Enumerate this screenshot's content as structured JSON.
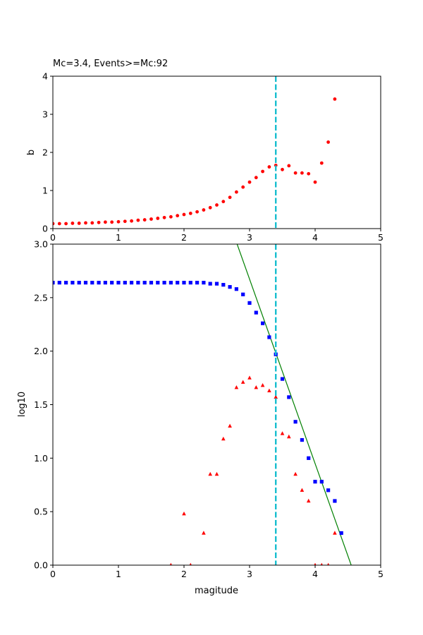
{
  "chart_data": [
    {
      "type": "scatter",
      "title": "Mc=3.4, Events>=Mc:92",
      "xlabel": "",
      "ylabel": "b",
      "xlim": [
        0,
        5
      ],
      "ylim": [
        0,
        4
      ],
      "xticks": [
        "0",
        "1",
        "2",
        "3",
        "4",
        "5"
      ],
      "yticks": [
        "0",
        "1",
        "2",
        "3",
        "4"
      ],
      "grid": false,
      "vline": {
        "x": 3.4,
        "color": "#17becf",
        "style": "dashed"
      },
      "series": [
        {
          "marker": "circle",
          "color": "#ff0000",
          "x": [
            0.0,
            0.1,
            0.2,
            0.3,
            0.4,
            0.5,
            0.6,
            0.7,
            0.8,
            0.9,
            1.0,
            1.1,
            1.2,
            1.3,
            1.4,
            1.5,
            1.6,
            1.7,
            1.8,
            1.9,
            2.0,
            2.1,
            2.2,
            2.3,
            2.4,
            2.5,
            2.6,
            2.7,
            2.8,
            2.9,
            3.0,
            3.1,
            3.2,
            3.3,
            3.4,
            3.5,
            3.6,
            3.7,
            3.8,
            3.9,
            4.0,
            4.1,
            4.2,
            4.3
          ],
          "y": [
            0.13,
            0.13,
            0.13,
            0.14,
            0.14,
            0.15,
            0.15,
            0.16,
            0.17,
            0.17,
            0.18,
            0.19,
            0.2,
            0.22,
            0.23,
            0.25,
            0.27,
            0.29,
            0.31,
            0.34,
            0.37,
            0.4,
            0.44,
            0.49,
            0.55,
            0.62,
            0.71,
            0.82,
            0.96,
            1.09,
            1.22,
            1.34,
            1.5,
            1.62,
            1.66,
            1.55,
            1.65,
            1.46,
            1.46,
            1.44,
            1.22,
            1.72,
            2.27,
            3.4
          ]
        }
      ]
    },
    {
      "type": "scatter",
      "title": "",
      "xlabel": "magitude",
      "ylabel": "log10",
      "xlim": [
        0,
        5
      ],
      "ylim": [
        0,
        3
      ],
      "xticks": [
        "0",
        "1",
        "2",
        "3",
        "4",
        "5"
      ],
      "yticks": [
        "0.0",
        "0.5",
        "1.0",
        "1.5",
        "2.0",
        "2.5",
        "3.0"
      ],
      "grid": false,
      "vline": {
        "x": 3.4,
        "color": "#17becf",
        "style": "dashed"
      },
      "fit_line": {
        "color": "#008000",
        "x": [
          2.81,
          4.55
        ],
        "y": [
          3.0,
          0.0
        ]
      },
      "series": [
        {
          "marker": "square",
          "color": "#0000ff",
          "x": [
            0.0,
            0.1,
            0.2,
            0.3,
            0.4,
            0.5,
            0.6,
            0.7,
            0.8,
            0.9,
            1.0,
            1.1,
            1.2,
            1.3,
            1.4,
            1.5,
            1.6,
            1.7,
            1.8,
            1.9,
            2.0,
            2.1,
            2.2,
            2.3,
            2.4,
            2.5,
            2.6,
            2.7,
            2.8,
            2.9,
            3.0,
            3.1,
            3.2,
            3.3,
            3.4,
            3.5,
            3.6,
            3.7,
            3.8,
            3.9,
            4.0,
            4.1,
            4.2,
            4.3,
            4.4
          ],
          "y": [
            2.64,
            2.64,
            2.64,
            2.64,
            2.64,
            2.64,
            2.64,
            2.64,
            2.64,
            2.64,
            2.64,
            2.64,
            2.64,
            2.64,
            2.64,
            2.64,
            2.64,
            2.64,
            2.64,
            2.64,
            2.64,
            2.64,
            2.64,
            2.64,
            2.63,
            2.63,
            2.62,
            2.6,
            2.58,
            2.53,
            2.45,
            2.36,
            2.26,
            2.13,
            1.97,
            1.74,
            1.57,
            1.34,
            1.17,
            1.0,
            0.78,
            0.78,
            0.7,
            0.6,
            0.3
          ]
        },
        {
          "marker": "triangle",
          "color": "#ff0000",
          "x": [
            1.8,
            2.0,
            2.1,
            2.3,
            2.4,
            2.5,
            2.6,
            2.7,
            2.8,
            2.9,
            3.0,
            3.1,
            3.2,
            3.3,
            3.4,
            3.5,
            3.6,
            3.7,
            3.8,
            3.9,
            4.0,
            4.1,
            4.2,
            4.3
          ],
          "y": [
            0.0,
            0.48,
            0.0,
            0.3,
            0.85,
            0.85,
            1.18,
            1.3,
            1.66,
            1.71,
            1.75,
            1.66,
            1.68,
            1.63,
            1.57,
            1.23,
            1.2,
            0.85,
            0.7,
            0.6,
            0.0,
            0.0,
            0.0,
            0.3
          ]
        }
      ]
    }
  ]
}
